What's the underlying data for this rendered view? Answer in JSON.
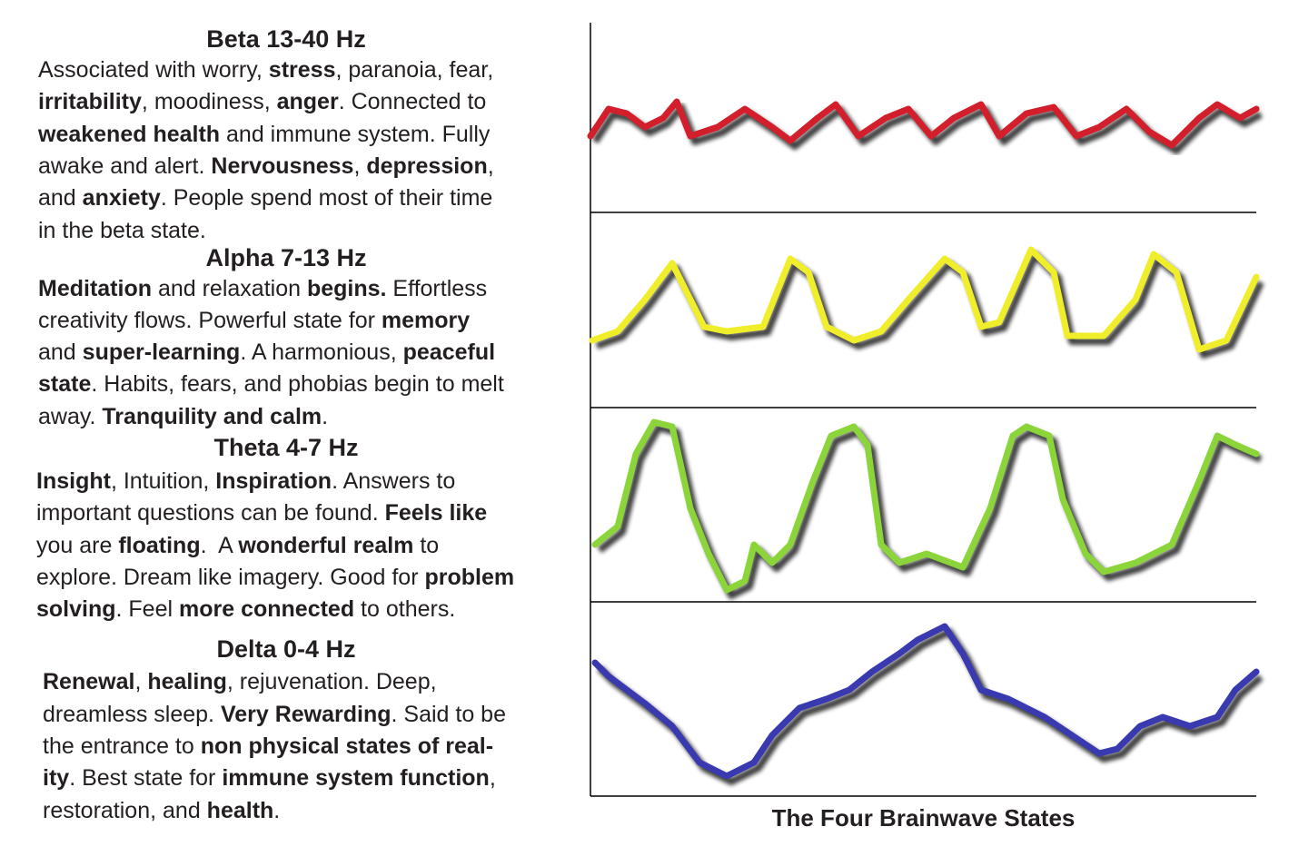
{
  "sections": [
    {
      "heading": "Beta 13-40 Hz",
      "lines": [
        [
          {
            "text": "Associated with worry, "
          },
          {
            "text": "stress",
            "bold": true
          },
          {
            "text": ", paranoia, fear,"
          }
        ],
        [
          {
            "text": "irritability",
            "bold": true
          },
          {
            "text": ", moodiness, "
          },
          {
            "text": "anger",
            "bold": true
          },
          {
            "text": ". Connected to"
          }
        ],
        [
          {
            "text": "weakened health",
            "bold": true
          },
          {
            "text": " and immune system. Fully"
          }
        ],
        [
          {
            "text": "awake and alert. "
          },
          {
            "text": "Nervousness",
            "bold": true
          },
          {
            "text": ", "
          },
          {
            "text": "depression",
            "bold": true
          },
          {
            "text": ","
          }
        ],
        [
          {
            "text": "and "
          },
          {
            "text": "anxiety",
            "bold": true
          },
          {
            "text": ". People spend most of their time"
          }
        ],
        [
          {
            "text": "in the beta state."
          }
        ]
      ]
    },
    {
      "heading": "Alpha 7-13 Hz",
      "lines": [
        [
          {
            "text": "Meditation",
            "bold": true
          },
          {
            "text": " and relaxation "
          },
          {
            "text": "begins.",
            "bold": true
          },
          {
            "text": " Effortless"
          }
        ],
        [
          {
            "text": "creativity flows. Powerful state for "
          },
          {
            "text": "memory",
            "bold": true
          }
        ],
        [
          {
            "text": "and "
          },
          {
            "text": "super-learning",
            "bold": true
          },
          {
            "text": ". A harmonious, "
          },
          {
            "text": "peaceful",
            "bold": true
          }
        ],
        [
          {
            "text": "state",
            "bold": true
          },
          {
            "text": ". Habits, fears, and phobias begin to melt"
          }
        ],
        [
          {
            "text": "away. "
          },
          {
            "text": "Tranquility and calm",
            "bold": true
          },
          {
            "text": "."
          }
        ]
      ]
    },
    {
      "heading": "Theta 4-7 Hz",
      "lines": [
        [
          {
            "text": "Insight",
            "bold": true
          },
          {
            "text": ", Intuition, "
          },
          {
            "text": "Inspiration",
            "bold": true
          },
          {
            "text": ". Answers to"
          }
        ],
        [
          {
            "text": "important questions can be found. "
          },
          {
            "text": "Feels like",
            "bold": true
          }
        ],
        [
          {
            "text": "you are "
          },
          {
            "text": "floating",
            "bold": true
          },
          {
            "text": ".  A "
          },
          {
            "text": "wonderful realm",
            "bold": true
          },
          {
            "text": " to"
          }
        ],
        [
          {
            "text": "explore. Dream like imagery. Good for "
          },
          {
            "text": "problem",
            "bold": true
          }
        ],
        [
          {
            "text": "solving",
            "bold": true
          },
          {
            "text": ". Feel "
          },
          {
            "text": "more connected",
            "bold": true
          },
          {
            "text": " to others."
          }
        ]
      ]
    },
    {
      "heading": "Delta 0-4 Hz",
      "lines": [
        [
          {
            "text": "Renewal",
            "bold": true
          },
          {
            "text": ", "
          },
          {
            "text": "healing",
            "bold": true
          },
          {
            "text": ", rejuvenation. Deep,"
          }
        ],
        [
          {
            "text": "dreamless sleep. "
          },
          {
            "text": "Very Rewarding",
            "bold": true
          },
          {
            "text": ". Said to be"
          }
        ],
        [
          {
            "text": "the entrance to "
          },
          {
            "text": "non physical states of real-",
            "bold": true
          }
        ],
        [
          {
            "text": "ity",
            "bold": true
          },
          {
            "text": ". Best state for "
          },
          {
            "text": "immune system function",
            "bold": true
          },
          {
            "text": ","
          }
        ],
        [
          {
            "text": "restoration, and "
          },
          {
            "text": "health",
            "bold": true
          },
          {
            "text": "."
          }
        ]
      ]
    }
  ],
  "caption": "The Four Brainwave States"
}
